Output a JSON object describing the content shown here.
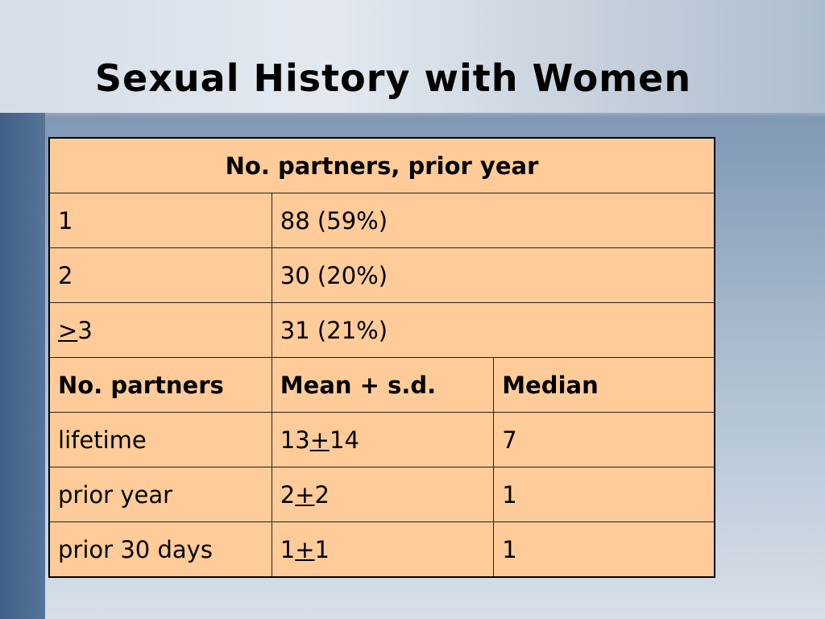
{
  "title": "Sexual History with Women",
  "table": {
    "sections": [
      {
        "header": [
          "No. partners, prior year"
        ],
        "rows": [
          [
            "1",
            "88 (59%)"
          ],
          [
            "2",
            "30 (20%)"
          ],
          [
            ">3",
            "31 (21%)"
          ]
        ]
      },
      {
        "header": [
          "No. partners",
          "Mean + s.d.",
          "Median"
        ],
        "rows": [
          [
            "lifetime",
            "13+14",
            "7"
          ],
          [
            "prior year",
            "2+2",
            "1"
          ],
          [
            "prior 30 days",
            "1+1",
            "1"
          ]
        ]
      }
    ]
  }
}
